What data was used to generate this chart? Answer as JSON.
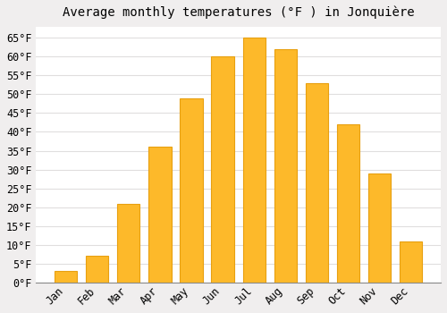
{
  "title": "Average monthly temperatures (°F ) in Jonquière",
  "months": [
    "Jan",
    "Feb",
    "Mar",
    "Apr",
    "May",
    "Jun",
    "Jul",
    "Aug",
    "Sep",
    "Oct",
    "Nov",
    "Dec"
  ],
  "values": [
    3,
    7,
    21,
    36,
    49,
    60,
    65,
    62,
    53,
    42,
    29,
    11
  ],
  "bar_color": "#FDB92A",
  "bar_edge_color": "#E8A010",
  "ylim": [
    0,
    68
  ],
  "yticks": [
    0,
    5,
    10,
    15,
    20,
    25,
    30,
    35,
    40,
    45,
    50,
    55,
    60,
    65
  ],
  "ylabel_suffix": "°F",
  "background_color": "#f0eeee",
  "plot_background": "#ffffff",
  "grid_color": "#e0dede",
  "title_fontsize": 10,
  "tick_fontsize": 8.5,
  "bar_width": 0.72
}
